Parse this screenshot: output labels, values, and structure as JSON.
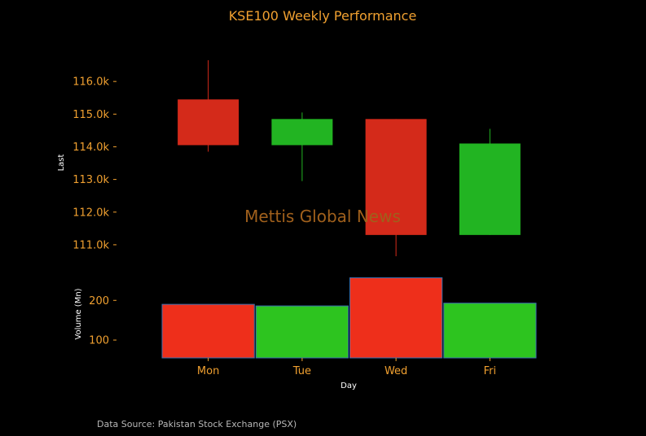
{
  "chart_data": {
    "type": "candlestick",
    "title": "KSE100 Weekly Performance",
    "categories": [
      "Mon",
      "Tue",
      "Wed",
      "Fri"
    ],
    "xlabel": "Day",
    "price": {
      "ylabel": "Last",
      "ylim": [
        110400,
        117000
      ],
      "ticks": [
        111000,
        112000,
        113000,
        114000,
        115000,
        116000
      ],
      "tick_labels": [
        "111.0k",
        "112.0k",
        "113.0k",
        "114.0k",
        "115.0k",
        "116.0k"
      ],
      "ohlc": [
        {
          "open": 115450,
          "high": 116650,
          "low": 113850,
          "close": 114050
        },
        {
          "open": 114050,
          "high": 115050,
          "low": 112950,
          "close": 114850
        },
        {
          "open": 114850,
          "high": 114850,
          "low": 110650,
          "close": 111300
        },
        {
          "open": 111300,
          "high": 114550,
          "low": 111300,
          "close": 114100
        }
      ]
    },
    "volume": {
      "ylabel": "Volume (Mn)",
      "ylim": [
        55,
        260
      ],
      "ticks": [
        100,
        200
      ],
      "tick_labels": [
        "100",
        "200"
      ],
      "values": [
        190,
        186,
        257,
        193
      ]
    },
    "colors": {
      "up": "#22b422",
      "down": "#d42a1a",
      "volume_up": "#2dc41f",
      "volume_down": "#ee2f1b",
      "volume_edge": "#3a6fb0",
      "text_accent": "#f0a030",
      "background": "#000000"
    },
    "grid": false,
    "watermark": "Mettis Global News",
    "source": "Data Source: Pakistan Stock Exchange (PSX)"
  }
}
